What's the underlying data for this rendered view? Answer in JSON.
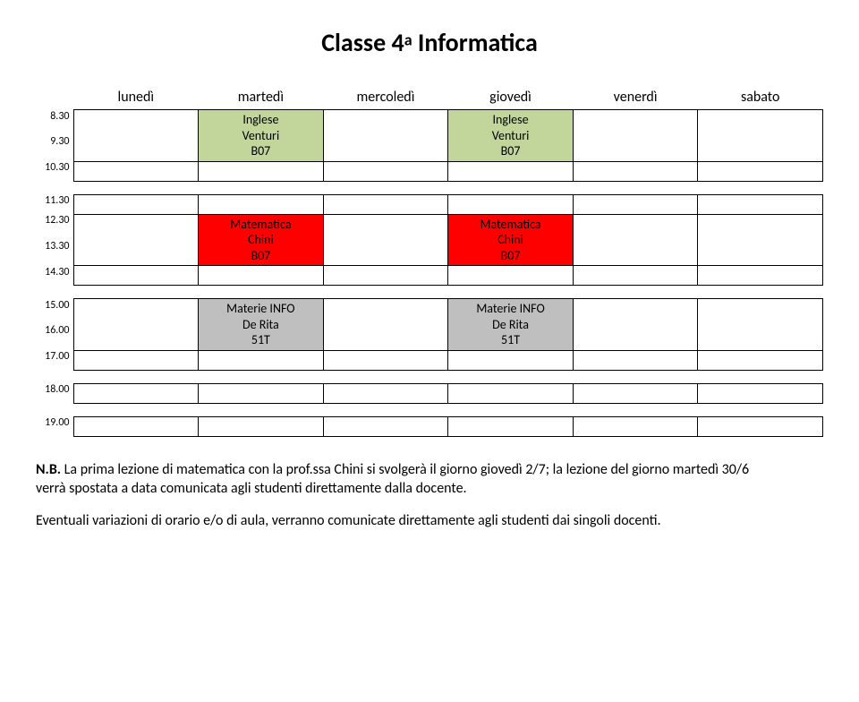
{
  "title": {
    "prefix": "Classe 4",
    "sup": "a",
    "suffix": " Informatica"
  },
  "days": [
    "lunedì",
    "martedì",
    "mercoledì",
    "giovedì",
    "venerdì",
    "sabato"
  ],
  "times": {
    "t830": "8.30",
    "t930": "9.30",
    "t1030": "10.30",
    "t1130": "11.30",
    "t1230": "12.30",
    "t1330": "13.30",
    "t1430": "14.30",
    "t1500": "15.00",
    "t1600": "16.00",
    "t1700": "17.00",
    "t1800": "18.00",
    "t1900": "19.00"
  },
  "blocks": {
    "inglese": {
      "line1": "Inglese",
      "line2": "Venturi",
      "line3": "B07",
      "bg": "#c2d69b"
    },
    "matematica": {
      "line1": "Matematica",
      "line2": "Chini",
      "line3": "B07",
      "bg": "#ff0000"
    },
    "materie": {
      "line1": "Materie INFO",
      "line2": "De Rita",
      "line3": "51T",
      "bg": "#bfbfbf"
    }
  },
  "notes": {
    "nb_label": "N.B.",
    "p1": " La prima lezione di matematica con la prof.ssa Chini si svolgerà il giorno giovedì 2/7; la lezione del giorno martedì 30/6 verrà spostata a data comunicata agli studenti direttamente dalla docente.",
    "p2": "Eventuali variazioni di orario e/o di aula, verranno comunicate direttamente agli studenti dai singoli docenti."
  }
}
